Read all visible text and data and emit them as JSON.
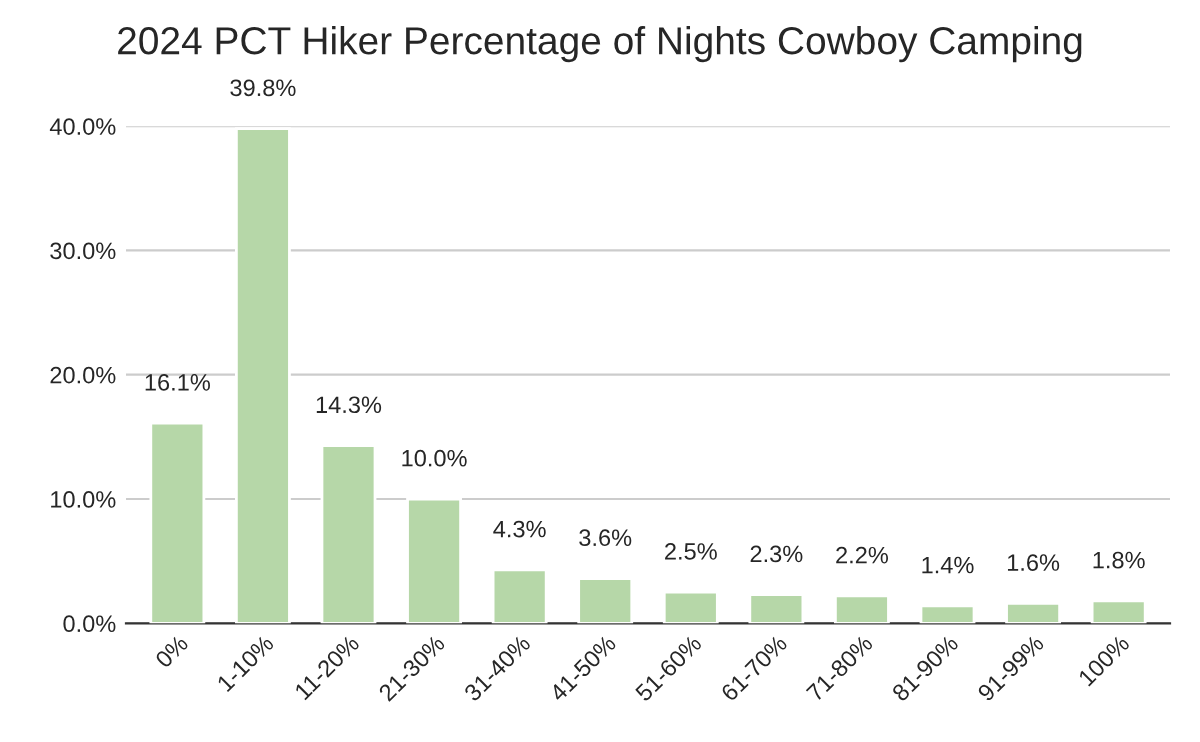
{
  "chart_data": {
    "type": "bar",
    "title": "2024 PCT Hiker Percentage of Nights Cowboy Camping",
    "categories": [
      "0%",
      "1-10%",
      "11-20%",
      "21-30%",
      "31-40%",
      "41-50%",
      "51-60%",
      "61-70%",
      "71-80%",
      "81-90%",
      "91-99%",
      "100%"
    ],
    "values": [
      16.1,
      39.8,
      14.3,
      10.0,
      4.3,
      3.6,
      2.5,
      2.3,
      2.2,
      1.4,
      1.6,
      1.8
    ],
    "value_labels": [
      "16.1%",
      "39.8%",
      "14.3%",
      "10.0%",
      "4.3%",
      "3.6%",
      "2.5%",
      "2.3%",
      "2.2%",
      "1.4%",
      "1.6%",
      "1.8%"
    ],
    "color": "#b6d7a8",
    "ylim": [
      0,
      40
    ],
    "yticks": [
      {
        "value": 0,
        "label": "0.0%"
      },
      {
        "value": 10,
        "label": "10.0%"
      },
      {
        "value": 20,
        "label": "20.0%"
      },
      {
        "value": 30,
        "label": "30.0%"
      },
      {
        "value": 40,
        "label": "40.0%"
      }
    ],
    "grid": "y",
    "legend": false
  }
}
